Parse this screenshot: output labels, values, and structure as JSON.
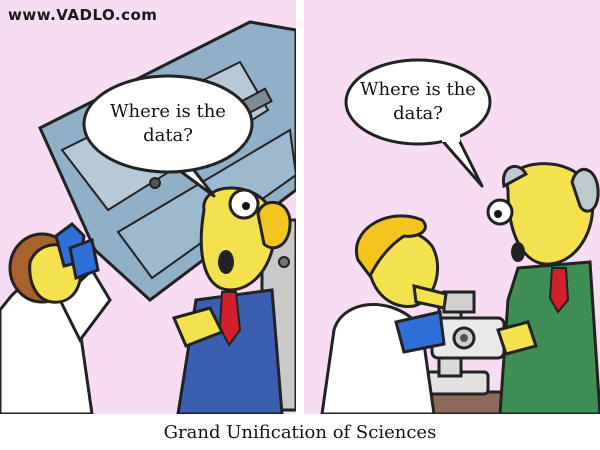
{
  "watermark": "www.VADLO.com",
  "panels": [
    {
      "speech": "Where is the\ndata?"
    },
    {
      "speech": "Where is the\ndata?"
    }
  ],
  "caption": "Grand Unification of Sciences",
  "colors": {
    "background": "#f7dcf3",
    "telescope": "#8fb0c7",
    "lab_coat": "#ffffff",
    "suit_blue": "#3a5fb0",
    "suit_green": "#3f8f55",
    "tie": "#d31f2a",
    "skin": "#f3e24d",
    "hair_blonde": "#f4c51f",
    "hair_brown": "#a9612e",
    "gloves": "#2f6fd8",
    "bench": "#8a6a58"
  }
}
